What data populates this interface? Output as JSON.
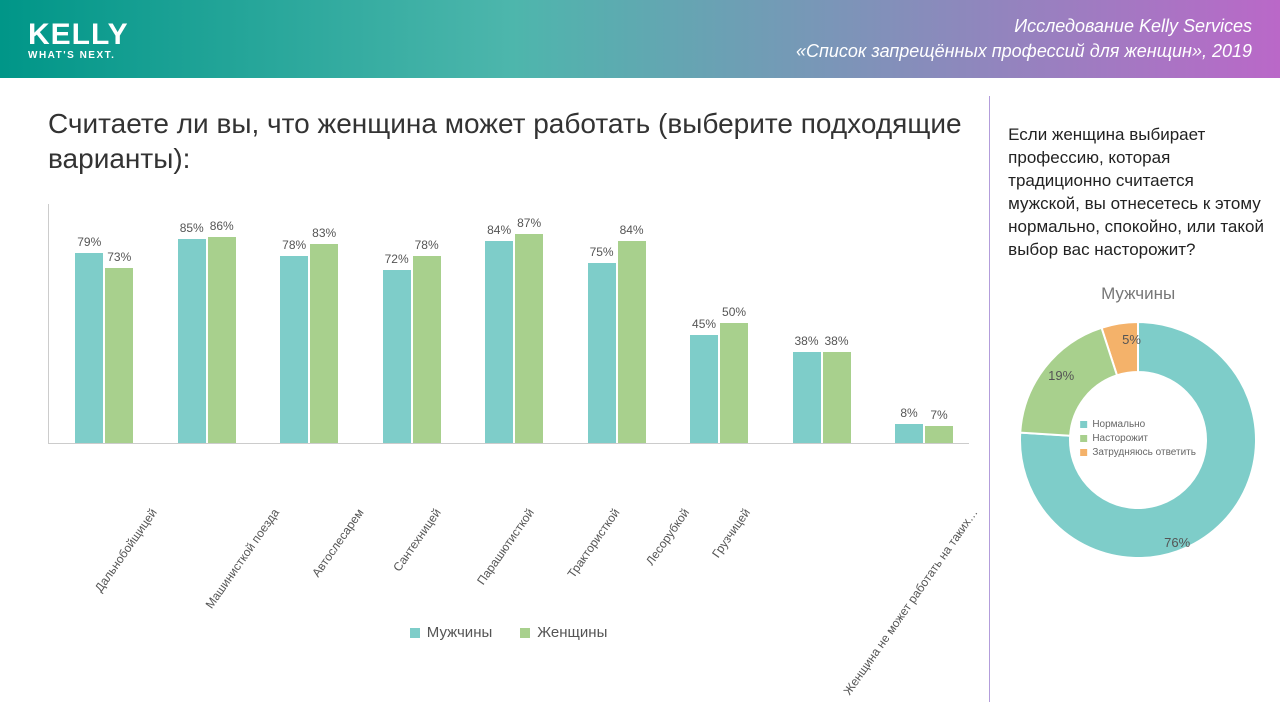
{
  "header": {
    "logo_main": "KELLY",
    "logo_sub": "WHAT'S NEXT.",
    "line1": "Исследование Kelly Services",
    "line2": "«Список запрещённых профессий для женщин», 2019",
    "gradient_start": "#009688",
    "gradient_mid": "#4db6ac",
    "gradient_end": "#ba68c8"
  },
  "colors": {
    "men": "#7ecdc9",
    "women": "#a8d08d",
    "orange": "#f4b26a"
  },
  "bar_chart": {
    "title": "Считаете ли вы, что женщина может работать (выберите подходящие варианты):",
    "ymax": 100,
    "categories": [
      "Дальнобойщицей",
      "Машинисткой поезда",
      "Автослесарем",
      "Сантехницей",
      "Парашютисткой",
      "Трактористкой",
      "Лесорубкой",
      "Грузчицей",
      "Женщина не может работать на таких…"
    ],
    "men_values": [
      79,
      85,
      78,
      72,
      84,
      75,
      45,
      38,
      8
    ],
    "women_values": [
      73,
      86,
      83,
      78,
      87,
      84,
      50,
      38,
      7
    ],
    "legend_men": "Мужчины",
    "legend_women": "Женщины"
  },
  "right_panel": {
    "question": "Если женщина выбирает профессию, которая традиционно считается мужской, вы отнесетесь к этому нормально, спокойно, или такой выбор вас насторожит?",
    "donut_title": "Мужчины",
    "segments": [
      {
        "label": "Нормально",
        "value": 76,
        "color": "#7ecdc9"
      },
      {
        "label": "Насторожит",
        "value": 19,
        "color": "#a8d08d"
      },
      {
        "label": "Затрудняюсь ответить",
        "value": 5,
        "color": "#f4b26a"
      }
    ],
    "seg_label_76": "76%",
    "seg_label_19": "19%",
    "seg_label_5": "5%"
  }
}
